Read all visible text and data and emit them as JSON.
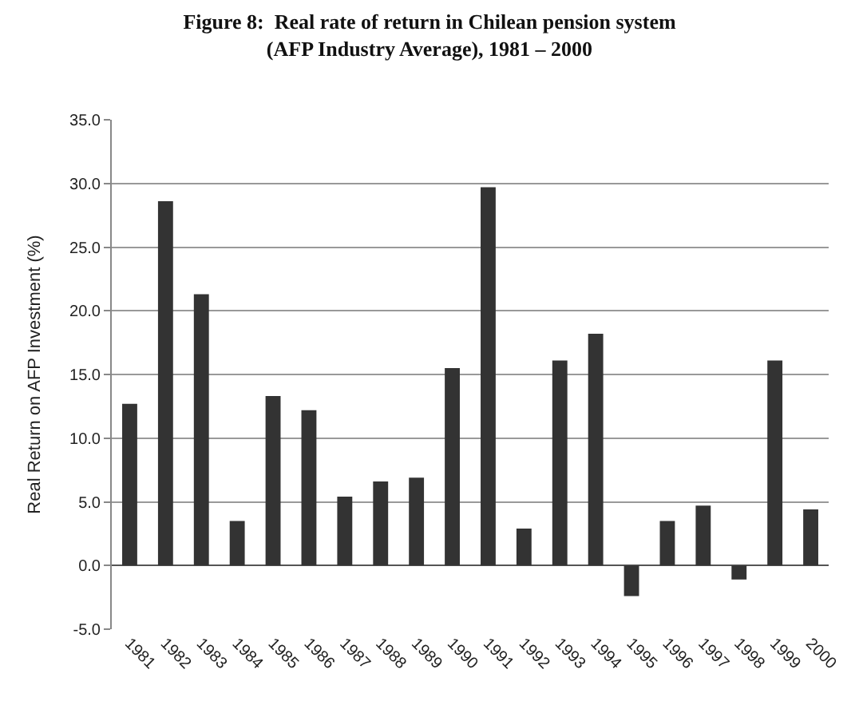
{
  "chart_data": {
    "type": "bar",
    "title": "Figure 8:  Real rate of return in Chilean pension system\n(AFP Industry Average), 1981 – 2000",
    "ylabel": "Real Return on AFP Investment (%)",
    "categories": [
      "1981",
      "1982",
      "1983",
      "1984",
      "1985",
      "1986",
      "1987",
      "1988",
      "1989",
      "1990",
      "1991",
      "1992",
      "1993",
      "1994",
      "1995",
      "1996",
      "1997",
      "1998",
      "1999",
      "2000"
    ],
    "values": [
      12.7,
      28.6,
      21.3,
      3.5,
      13.3,
      12.2,
      5.4,
      6.6,
      6.9,
      15.5,
      29.7,
      2.9,
      16.1,
      18.2,
      -2.4,
      3.5,
      4.7,
      -1.1,
      16.1,
      4.4
    ],
    "color": "#333333",
    "ylim": [
      -5,
      35
    ],
    "yticks": [
      {
        "value": -5,
        "label": "-5.0"
      },
      {
        "value": 0,
        "label": "0.0"
      },
      {
        "value": 5,
        "label": "5.0"
      },
      {
        "value": 10,
        "label": "10.0"
      },
      {
        "value": 15,
        "label": "15.0"
      },
      {
        "value": 20,
        "label": "20.0"
      },
      {
        "value": 25,
        "label": "25.0"
      },
      {
        "value": 30,
        "label": "30.0"
      },
      {
        "value": 35,
        "label": "35.0"
      }
    ],
    "grid": "y",
    "legend": false
  }
}
